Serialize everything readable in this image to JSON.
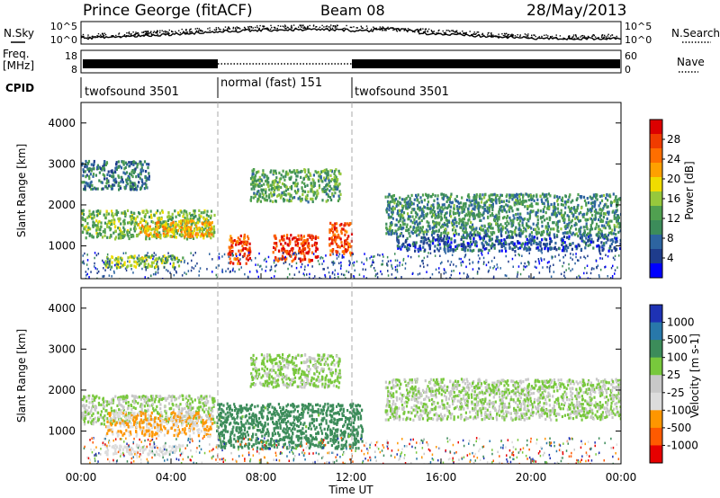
{
  "header": {
    "station": "Prince George (fitACF)",
    "beam": "Beam 08",
    "date": "28/May/2013"
  },
  "noise_panel": {
    "left_label": "N.Sky",
    "right_label": "N.Search",
    "left_ticks": [
      "10^5",
      "10^0"
    ],
    "right_ticks": [
      "10^5",
      "10^0"
    ]
  },
  "freq_panel": {
    "left_label_1": "Freq.",
    "left_label_2": "[MHz]",
    "left_ticks": [
      "18",
      "8"
    ],
    "right_label": "Nave",
    "right_ticks": [
      "60",
      "0"
    ]
  },
  "cpid": {
    "label": "CPID",
    "segments": [
      {
        "name": "twofsound 3501",
        "start_h": 0,
        "end_h": 6
      },
      {
        "name": "normal (fast) 151",
        "start_h": 6,
        "end_h": 12
      },
      {
        "name": "twofsound 3501",
        "start_h": 12,
        "end_h": 24
      }
    ]
  },
  "chart_data": [
    {
      "type": "heatmap",
      "title": "",
      "ylabel": "Slant Range [km]",
      "xlim": [
        0,
        24
      ],
      "ylim": [
        200,
        4500
      ],
      "yticks": [
        "1000",
        "2000",
        "3000",
        "4000"
      ],
      "colorbar": {
        "label": "Power [dB]",
        "ticks": [
          "4",
          "8",
          "12",
          "16",
          "20",
          "24",
          "28"
        ],
        "colors": [
          "#0000ff",
          "#1e3c8c",
          "#2d64a0",
          "#3c8c5a",
          "#50a050",
          "#96c83c",
          "#f0dc00",
          "#ffa000",
          "#ff6e00",
          "#f03c00",
          "#dc0000"
        ]
      },
      "series": [
        {
          "start_h": 0.0,
          "end_h": 5.9,
          "range_km": [
            1200,
            1900
          ],
          "value": 14
        },
        {
          "start_h": 0.0,
          "end_h": 3.0,
          "range_km": [
            2400,
            3100
          ],
          "value": 8
        },
        {
          "start_h": 2.5,
          "end_h": 5.8,
          "range_km": [
            1250,
            1650
          ],
          "value": 22
        },
        {
          "start_h": 1.0,
          "end_h": 4.5,
          "range_km": [
            500,
            800
          ],
          "value": 16
        },
        {
          "start_h": 6.5,
          "end_h": 7.5,
          "range_km": [
            600,
            1300
          ],
          "value": 28
        },
        {
          "start_h": 8.5,
          "end_h": 10.5,
          "range_km": [
            650,
            1300
          ],
          "value": 29
        },
        {
          "start_h": 11.0,
          "end_h": 12.0,
          "range_km": [
            800,
            1600
          ],
          "value": 28
        },
        {
          "start_h": 7.5,
          "end_h": 11.5,
          "range_km": [
            2100,
            2900
          ],
          "value": 12
        },
        {
          "start_h": 13.5,
          "end_h": 24.0,
          "range_km": [
            1300,
            2300
          ],
          "value": 10
        },
        {
          "start_h": 14.0,
          "end_h": 24.0,
          "range_km": [
            900,
            1300
          ],
          "value": 5
        }
      ]
    },
    {
      "type": "heatmap",
      "title": "",
      "ylabel": "Slant Range [km]",
      "xlabel": "Time UT",
      "xlim": [
        0,
        24
      ],
      "ylim": [
        200,
        4500
      ],
      "xticks": [
        "00:00",
        "04:00",
        "08:00",
        "12:00",
        "16:00",
        "20:00",
        "00:00"
      ],
      "yticks": [
        "1000",
        "2000",
        "3000",
        "4000"
      ],
      "colorbar": {
        "label": "Velocity [m s-1]",
        "ticks": [
          "1000",
          "500",
          "100",
          "25",
          "-25",
          "-100",
          "-500",
          "-1000"
        ],
        "colors": [
          "#1e32b4",
          "#2878aa",
          "#3c8c5a",
          "#78c83c",
          "#c8c8c8",
          "#dcdcdc",
          "#ff9600",
          "#ff5a00",
          "#e60000"
        ]
      },
      "series": [
        {
          "start_h": 0.0,
          "end_h": 5.9,
          "range_km": [
            1200,
            1900
          ],
          "value": 0
        },
        {
          "start_h": 1.0,
          "end_h": 5.8,
          "range_km": [
            900,
            1500
          ],
          "value": -300
        },
        {
          "start_h": 1.0,
          "end_h": 4.5,
          "range_km": [
            450,
            700
          ],
          "value": -200
        },
        {
          "start_h": 6.0,
          "end_h": 12.5,
          "range_km": [
            600,
            1700
          ],
          "value": 120
        },
        {
          "start_h": 7.5,
          "end_h": 11.5,
          "range_km": [
            2100,
            2900
          ],
          "value": 10
        },
        {
          "start_h": 13.5,
          "end_h": 24.0,
          "range_km": [
            1300,
            2300
          ],
          "value": 0
        }
      ]
    }
  ]
}
